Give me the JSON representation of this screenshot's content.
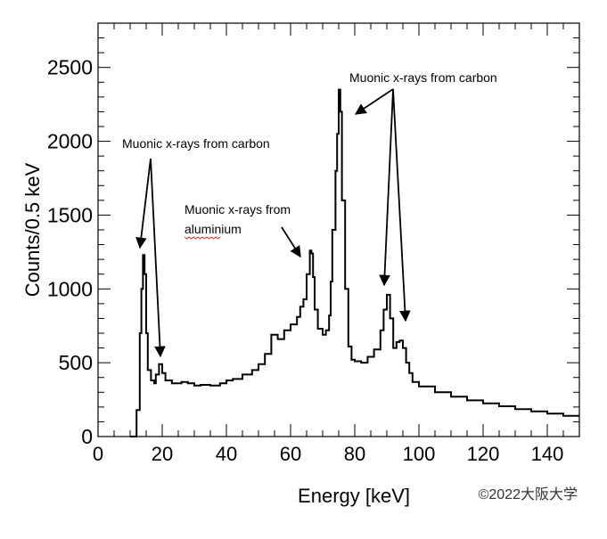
{
  "chart_data": {
    "type": "histogram",
    "xlabel": "Energy [keV]",
    "ylabel": "Counts/0.5 keV",
    "xlim": [
      0,
      150
    ],
    "ylim": [
      0,
      2800
    ],
    "x_ticks": [
      0,
      20,
      40,
      60,
      80,
      100,
      120,
      140
    ],
    "y_ticks": [
      0,
      500,
      1000,
      1500,
      2000,
      2500
    ],
    "grid": false,
    "series": [
      {
        "points": [
          [
            10.0,
            0
          ],
          [
            11.0,
            0
          ],
          [
            12.0,
            180
          ],
          [
            13.0,
            700
          ],
          [
            13.5,
            1000
          ],
          [
            14.0,
            1230
          ],
          [
            14.5,
            1100
          ],
          [
            15.0,
            700
          ],
          [
            15.5,
            450
          ],
          [
            16.5,
            380
          ],
          [
            17.5,
            360
          ],
          [
            18.0,
            420
          ],
          [
            19.0,
            490
          ],
          [
            20.0,
            430
          ],
          [
            21.0,
            380
          ],
          [
            23.0,
            360
          ],
          [
            26.0,
            370
          ],
          [
            28.0,
            360
          ],
          [
            30.0,
            345
          ],
          [
            32.0,
            350
          ],
          [
            35.0,
            345
          ],
          [
            38.0,
            360
          ],
          [
            40.0,
            380
          ],
          [
            42.0,
            390
          ],
          [
            45.0,
            420
          ],
          [
            48.0,
            450
          ],
          [
            50.0,
            490
          ],
          [
            52.0,
            560
          ],
          [
            54.0,
            690
          ],
          [
            56.0,
            660
          ],
          [
            58.0,
            720
          ],
          [
            60.0,
            760
          ],
          [
            62.0,
            810
          ],
          [
            63.0,
            880
          ],
          [
            64.0,
            930
          ],
          [
            65.0,
            1100
          ],
          [
            66.0,
            1260
          ],
          [
            66.5,
            1240
          ],
          [
            67.0,
            1080
          ],
          [
            67.5,
            860
          ],
          [
            68.5,
            730
          ],
          [
            70.0,
            690
          ],
          [
            71.0,
            720
          ],
          [
            72.0,
            820
          ],
          [
            72.5,
            1050
          ],
          [
            73.0,
            1400
          ],
          [
            74.0,
            1800
          ],
          [
            74.5,
            2050
          ],
          [
            75.0,
            2350
          ],
          [
            75.5,
            2200
          ],
          [
            76.0,
            1600
          ],
          [
            77.0,
            1000
          ],
          [
            78.0,
            610
          ],
          [
            79.0,
            520
          ],
          [
            80.0,
            510
          ],
          [
            82.0,
            500
          ],
          [
            84.0,
            540
          ],
          [
            86.0,
            590
          ],
          [
            88.0,
            720
          ],
          [
            89.0,
            860
          ],
          [
            90.0,
            960
          ],
          [
            91.0,
            800
          ],
          [
            92.0,
            600
          ],
          [
            93.0,
            640
          ],
          [
            94.0,
            650
          ],
          [
            95.0,
            600
          ],
          [
            96.0,
            500
          ],
          [
            97.0,
            430
          ],
          [
            98.0,
            370
          ],
          [
            100.0,
            340
          ],
          [
            105.0,
            300
          ],
          [
            110.0,
            270
          ],
          [
            115.0,
            245
          ],
          [
            120.0,
            225
          ],
          [
            125.0,
            205
          ],
          [
            130.0,
            185
          ],
          [
            135.0,
            170
          ],
          [
            140.0,
            155
          ],
          [
            145.0,
            140
          ],
          [
            150.0,
            140
          ]
        ]
      }
    ],
    "annotations": [
      {
        "lines": [
          "Muonic x-rays from carbon"
        ]
      },
      {
        "lines": [
          "Muonic x-rays from",
          "aluminium"
        ]
      },
      {
        "lines": [
          "Muonic x-rays from carbon"
        ]
      }
    ],
    "credit": "©2022大阪大学"
  }
}
